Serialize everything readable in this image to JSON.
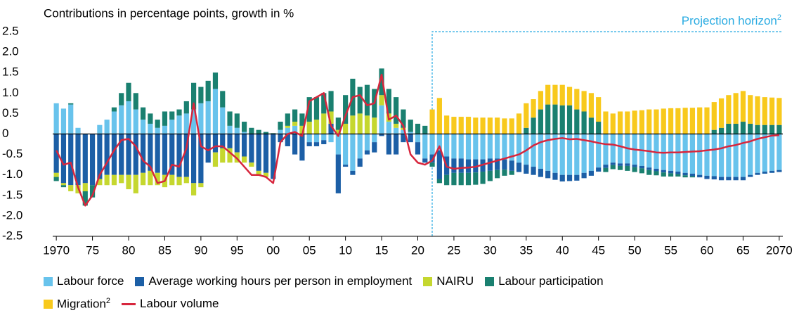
{
  "chart_data": {
    "type": "bar",
    "stacked": true,
    "title": "Contributions in percentage points, growth in %",
    "annotation": {
      "text": "Projection horizon",
      "superscript": "2"
    },
    "categories": [
      "1970",
      null,
      null,
      null,
      null,
      "75",
      null,
      null,
      null,
      null,
      "80",
      null,
      null,
      null,
      null,
      "85",
      null,
      null,
      null,
      null,
      "90",
      null,
      null,
      null,
      null,
      "95",
      null,
      null,
      null,
      null,
      "00",
      null,
      null,
      null,
      null,
      "05",
      null,
      null,
      null,
      null,
      "10",
      null,
      null,
      null,
      null,
      "15",
      null,
      null,
      null,
      null,
      "20",
      null,
      null,
      null,
      null,
      "25",
      null,
      null,
      null,
      null,
      "30",
      null,
      null,
      null,
      null,
      "35",
      null,
      null,
      null,
      null,
      "40",
      null,
      null,
      null,
      null,
      "45",
      null,
      null,
      null,
      null,
      "50",
      null,
      null,
      null,
      null,
      "55",
      null,
      null,
      null,
      null,
      "60",
      null,
      null,
      null,
      null,
      "65",
      null,
      null,
      null,
      null,
      "2070"
    ],
    "ylim": [
      -2.5,
      2.5
    ],
    "yticks": [
      2.5,
      {
        "value": 2,
        "label": "2.0"
      },
      1.5,
      {
        "value": 1,
        "label": "1.0"
      },
      0.5,
      0,
      -0.5,
      {
        "value": -1,
        "label": "-1.0"
      },
      -1.5,
      {
        "value": -2,
        "label": "-2.0"
      },
      -2.5
    ],
    "grid": false,
    "series": [
      {
        "name": "Labour force",
        "color": "#68c3ec",
        "values": [
          0.75,
          0.62,
          0.72,
          0.15,
          0,
          0,
          0.22,
          0.35,
          0.55,
          0.7,
          0.8,
          0.6,
          0.35,
          0.25,
          0.15,
          0.2,
          0.35,
          0.45,
          0.5,
          0.6,
          0.75,
          0.8,
          1.1,
          0.65,
          0.2,
          0.15,
          0.05,
          0,
          0,
          0,
          0,
          0.1,
          0.15,
          0.2,
          0,
          -0.2,
          -0.2,
          -0.15,
          -0.2,
          -0.5,
          -0.75,
          -0.9,
          -0.6,
          -0.4,
          -0.2,
          0.7,
          0.3,
          0.15,
          0.1,
          0.05,
          -0.2,
          -0.6,
          -0.5,
          -0.4,
          -0.55,
          -0.6,
          -0.6,
          -0.62,
          -0.62,
          -0.62,
          -0.6,
          -0.6,
          -0.62,
          -0.65,
          -0.7,
          -0.75,
          -0.8,
          -0.85,
          -0.9,
          -0.95,
          -1,
          -1,
          -1,
          -0.95,
          -0.9,
          -0.82,
          -0.75,
          -0.7,
          -0.72,
          -0.72,
          -0.75,
          -0.78,
          -0.82,
          -0.85,
          -0.88,
          -0.9,
          -0.92,
          -0.95,
          -0.97,
          -1,
          -1.02,
          -1.03,
          -1.05,
          -1.05,
          -1.05,
          -1.05,
          -1,
          -0.95,
          -0.92,
          -0.9,
          -0.88
        ]
      },
      {
        "name": "Average working hours per person in employment",
        "color": "#1c5fa6",
        "values": [
          -0.95,
          -1.2,
          -1.25,
          -1.25,
          -1.2,
          -1.25,
          -1.1,
          -1,
          -1,
          -1,
          -1,
          -1,
          -0.95,
          -0.9,
          -0.95,
          -1,
          -1,
          -1.05,
          -1.05,
          -1.2,
          -1.2,
          -0.7,
          -0.45,
          -0.35,
          -0.35,
          -0.45,
          -0.55,
          -0.7,
          -0.9,
          -0.95,
          -1.1,
          -0.2,
          -0.3,
          -0.5,
          -0.65,
          -0.1,
          -0.1,
          -0.1,
          0.25,
          -0.95,
          -0.05,
          -0.1,
          -0.2,
          -0.1,
          -0.25,
          -0.05,
          -0.5,
          -0.5,
          -0.2,
          -0.2,
          -0.3,
          -0.1,
          -0.2,
          -0.7,
          -0.45,
          -0.35,
          -0.35,
          -0.33,
          -0.32,
          -0.3,
          -0.3,
          -0.28,
          -0.25,
          -0.25,
          -0.23,
          -0.22,
          -0.2,
          -0.2,
          -0.18,
          -0.17,
          -0.16,
          -0.15,
          -0.14,
          -0.13,
          -0.12,
          -0.1,
          -0.08,
          -0.06,
          -0.06,
          -0.06,
          -0.06,
          -0.06,
          -0.06,
          -0.06,
          -0.06,
          -0.06,
          -0.06,
          -0.06,
          -0.06,
          -0.06,
          -0.08,
          -0.08,
          -0.08,
          -0.08,
          -0.08,
          -0.08,
          -0.05,
          -0.05,
          -0.05,
          -0.05,
          -0.05
        ]
      },
      {
        "name": "NAIRU",
        "color": "#c5d72f",
        "values": [
          -0.1,
          -0.05,
          -0.15,
          -0.2,
          -0.2,
          0,
          -0.15,
          -0.25,
          -0.25,
          -0.2,
          -0.35,
          -0.45,
          -0.3,
          -0.35,
          -0.3,
          -0.3,
          -0.25,
          -0.2,
          -0.15,
          -0.3,
          -0.1,
          0,
          -0.35,
          -0.35,
          -0.35,
          -0.25,
          -0.15,
          -0.1,
          -0.1,
          -0.1,
          0,
          0,
          0.05,
          0.1,
          0.2,
          0.3,
          0.35,
          0.5,
          0.3,
          0.1,
          0.25,
          0.45,
          0.5,
          0.45,
          0.4,
          0.25,
          0.2,
          0.1,
          0.05,
          0,
          0,
          0,
          0,
          0,
          0,
          0,
          0,
          0,
          0,
          0,
          0,
          0,
          0,
          0,
          0,
          0,
          0,
          0,
          0,
          0,
          0,
          0,
          0,
          0,
          0,
          0,
          0,
          0,
          0,
          0,
          0,
          0,
          0,
          0,
          0,
          0,
          0,
          0,
          0,
          0,
          0,
          0,
          0,
          0,
          0,
          0,
          0,
          0,
          0,
          0,
          0
        ]
      },
      {
        "name": "Labour participation",
        "color": "#1a8070",
        "values": [
          -0.1,
          -0.05,
          0.03,
          0,
          -0.35,
          -0.3,
          0,
          0,
          0.1,
          0.3,
          0.45,
          0.4,
          0.3,
          0.25,
          0.2,
          0.35,
          0.2,
          0.15,
          0.3,
          0.65,
          0.4,
          0.5,
          0.4,
          0.4,
          0.35,
          0.35,
          0.25,
          0.15,
          0.1,
          0.05,
          0.02,
          0.2,
          0.3,
          0.3,
          0.3,
          0.6,
          0.55,
          0.5,
          0.5,
          0.3,
          0.7,
          0.9,
          0.65,
          0.75,
          0.7,
          0.65,
          0.6,
          0.65,
          0.45,
          0.3,
          0.25,
          0.2,
          -0.1,
          -0.1,
          -0.25,
          -0.3,
          -0.3,
          -0.3,
          -0.3,
          -0.3,
          -0.25,
          -0.2,
          -0.15,
          -0.1,
          0,
          0.15,
          0.4,
          0.6,
          0.72,
          0.72,
          0.7,
          0.7,
          0.6,
          0.55,
          0.4,
          0.3,
          -0.1,
          -0.1,
          -0.1,
          -0.12,
          -0.12,
          -0.12,
          -0.12,
          -0.1,
          -0.1,
          -0.08,
          -0.06,
          -0.05,
          -0.03,
          0,
          0,
          0.1,
          0.15,
          0.25,
          0.25,
          0.3,
          0.25,
          0.22,
          0.22,
          0.22,
          0.22
        ]
      },
      {
        "name": "Migration",
        "superscript": "2",
        "color": "#f8c91c",
        "values": [
          0,
          0,
          0,
          0,
          0,
          0,
          0,
          0,
          0,
          0,
          0,
          0,
          0,
          0,
          0,
          0,
          0,
          0,
          0,
          0,
          0,
          0,
          0,
          0,
          0,
          0,
          0,
          0,
          0,
          0,
          0,
          0,
          0,
          0,
          0,
          0,
          0,
          0,
          0,
          0,
          0,
          0,
          0,
          0,
          0,
          0,
          0,
          0,
          0,
          0,
          0,
          0,
          0.6,
          0.88,
          0.45,
          0.42,
          0.42,
          0.42,
          0.4,
          0.4,
          0.4,
          0.4,
          0.38,
          0.38,
          0.5,
          0.6,
          0.45,
          0.45,
          0.48,
          0.48,
          0.5,
          0.45,
          0.5,
          0.5,
          0.6,
          0.6,
          0.55,
          0.5,
          0.55,
          0.55,
          0.57,
          0.58,
          0.6,
          0.6,
          0.62,
          0.63,
          0.63,
          0.64,
          0.64,
          0.65,
          0.65,
          0.68,
          0.72,
          0.7,
          0.75,
          0.75,
          0.7,
          0.7,
          0.68,
          0.67,
          0.66
        ]
      },
      {
        "name": "Labour volume",
        "type": "line",
        "color": "#d7263d",
        "values": [
          -0.4,
          -0.75,
          -0.7,
          -1.3,
          -1.75,
          -1.5,
          -1,
          -0.7,
          -0.4,
          -0.15,
          -0.12,
          -0.3,
          -0.65,
          -0.8,
          -1.2,
          -1.15,
          -0.75,
          -0.8,
          -0.35,
          0.75,
          -0.3,
          -0.4,
          -0.3,
          -0.3,
          -0.45,
          -0.6,
          -0.8,
          -1,
          -1,
          -1.05,
          -1.2,
          -0.2,
          0,
          0.05,
          -0.05,
          0.8,
          0.9,
          1,
          0.2,
          -0.05,
          0.45,
          0.9,
          0.95,
          0.7,
          0.75,
          1.45,
          0.35,
          0.45,
          0.2,
          -0.5,
          -0.7,
          -0.75,
          -0.65,
          -0.3,
          -0.8,
          -0.85,
          -0.83,
          -0.82,
          -0.8,
          -0.75,
          -0.7,
          -0.65,
          -0.6,
          -0.55,
          -0.5,
          -0.4,
          -0.28,
          -0.2,
          -0.15,
          -0.12,
          -0.1,
          -0.13,
          -0.12,
          -0.15,
          -0.18,
          -0.22,
          -0.25,
          -0.26,
          -0.3,
          -0.35,
          -0.38,
          -0.4,
          -0.42,
          -0.45,
          -0.46,
          -0.45,
          -0.45,
          -0.44,
          -0.43,
          -0.42,
          -0.4,
          -0.38,
          -0.35,
          -0.3,
          -0.27,
          -0.22,
          -0.18,
          -0.12,
          -0.08,
          -0.04,
          -0.03
        ]
      }
    ]
  }
}
